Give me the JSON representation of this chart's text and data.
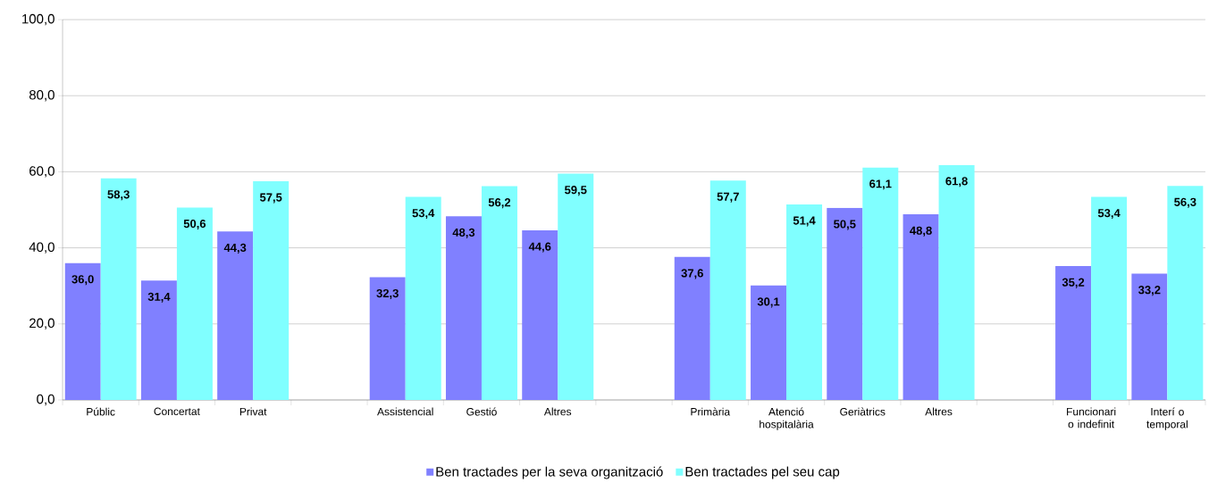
{
  "chart_data": {
    "type": "bar",
    "categories": [
      "Públic",
      "Concertat",
      "Privat",
      null,
      "Assistencial",
      "Gestió",
      "Altres",
      null,
      "Primària",
      "Atenció hospitalària",
      "Geriàtrics",
      "Altres",
      null,
      "Funcionari o indefinit",
      "Interí o temporal"
    ],
    "series": [
      {
        "name": "Ben tractades per la seva organització",
        "color": "#8080ff",
        "values": [
          36.0,
          31.4,
          44.3,
          null,
          32.3,
          48.3,
          44.6,
          null,
          37.6,
          30.1,
          50.5,
          48.8,
          null,
          35.2,
          33.2
        ],
        "value_labels": [
          "36,0",
          "31,4",
          "44,3",
          null,
          "32,3",
          "48,3",
          "44,6",
          null,
          "37,6",
          "30,1",
          "50,5",
          "48,8",
          null,
          "35,2",
          "33,2"
        ]
      },
      {
        "name": "Ben tractades pel seu cap",
        "color": "#80ffff",
        "values": [
          58.3,
          50.6,
          57.5,
          null,
          53.4,
          56.2,
          59.5,
          null,
          57.7,
          51.4,
          61.1,
          61.8,
          null,
          53.4,
          56.3
        ],
        "value_labels": [
          "58,3",
          "50,6",
          "57,5",
          null,
          "53,4",
          "56,2",
          "59,5",
          null,
          "57,7",
          "51,4",
          "61,1",
          "61,8",
          null,
          "53,4",
          "56,3"
        ]
      }
    ],
    "ylim": [
      0,
      100
    ],
    "yticks": [
      {
        "value": 0,
        "label": "0,0"
      },
      {
        "value": 20,
        "label": "20,0"
      },
      {
        "value": 40,
        "label": "40,0"
      },
      {
        "value": 60,
        "label": "60,0"
      },
      {
        "value": 80,
        "label": "80,0"
      },
      {
        "value": 100,
        "label": "100,0"
      }
    ],
    "grid": "y",
    "legend": "bottom"
  }
}
